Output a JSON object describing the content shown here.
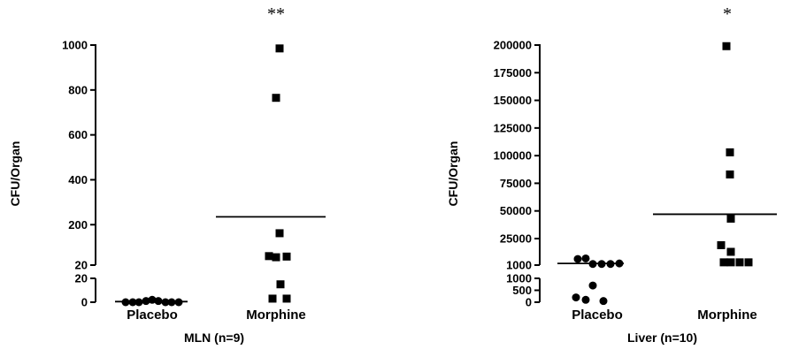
{
  "chart_data": [
    {
      "type": "scatter",
      "title": "",
      "xlabel": "MLN (n=9)",
      "ylabel": "CFU/Organ",
      "categories": [
        "Placebo",
        "Morphine"
      ],
      "significance": "**",
      "broken_axis": true,
      "lower_segment": {
        "ylim": [
          0,
          20
        ],
        "ticks": [
          "0",
          "20"
        ]
      },
      "upper_segment": {
        "ylim": [
          20,
          1000
        ],
        "ticks": [
          "20",
          "200",
          "400",
          "600",
          "800",
          "1000"
        ]
      },
      "series": [
        {
          "category": "Placebo",
          "marker": "circle",
          "mean": 0.5,
          "values": [
            0,
            0,
            0,
            1,
            2,
            1,
            0,
            0,
            0
          ]
        },
        {
          "category": "Morphine",
          "marker": "square",
          "mean": 235,
          "values": [
            985,
            765,
            162,
            60,
            55,
            58,
            15,
            3,
            3
          ]
        }
      ]
    },
    {
      "type": "scatter",
      "title": "",
      "xlabel": "Liver (n=10)",
      "ylabel": "CFU/Organ",
      "categories": [
        "Placebo",
        "Morphine"
      ],
      "significance": "*",
      "broken_axis": true,
      "lower_segment": {
        "ylim": [
          0,
          1000
        ],
        "ticks": [
          "0",
          "500",
          "1000"
        ]
      },
      "upper_segment": {
        "ylim": [
          1000,
          200000
        ],
        "ticks": [
          "1000",
          "25000",
          "50000",
          "75000",
          "100000",
          "125000",
          "150000",
          "175000",
          "200000"
        ]
      },
      "series": [
        {
          "category": "Placebo",
          "marker": "circle",
          "mean": 2500,
          "values": [
            7000,
            2000,
            2000,
            2000,
            2500,
            6500,
            700,
            200,
            100,
            50
          ]
        },
        {
          "category": "Morphine",
          "marker": "square",
          "mean": 47000,
          "values": [
            199000,
            103000,
            83000,
            43000,
            19000,
            13000,
            3500,
            3500,
            3500,
            3500
          ]
        }
      ]
    }
  ]
}
